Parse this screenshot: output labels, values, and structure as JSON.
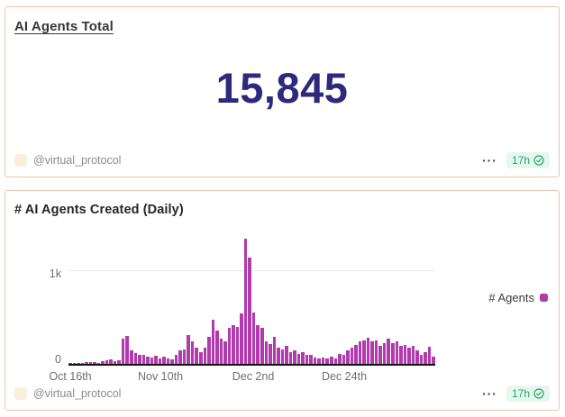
{
  "colors": {
    "card_border": "#e8c7b1",
    "counter_text": "#2d2a7e",
    "bar_magenta": "#b13aad",
    "badge_green_bg": "#e6f7ee",
    "badge_green_text": "#2aa169",
    "footer_gray": "#8b8b8b",
    "avatar_peach": "#fbeedc"
  },
  "icons": {
    "more_menu": "···"
  },
  "counter_card": {
    "title": "AI Agents Total",
    "value": "15,845",
    "footer": {
      "author": "@virtual_protocol",
      "refreshed": "17h"
    }
  },
  "chart_card": {
    "title": "# AI Agents Created (Daily)",
    "legend_label": "# Agents",
    "footer": {
      "author": "@virtual_protocol",
      "refreshed": "17h"
    }
  },
  "chart_data": {
    "type": "bar",
    "title": "# AI Agents Created (Daily)",
    "series_name": "# Agents",
    "bar_color": "#b13aad",
    "x_ticks": [
      "Oct 16th",
      "Nov 10th",
      "Dec 2nd",
      "Dec 24th"
    ],
    "y_ticks": [
      "1k",
      "0"
    ],
    "ylim": [
      0,
      1400
    ],
    "x_start_label": "Oct 16th",
    "x_frequency": "daily",
    "values": [
      8,
      10,
      6,
      12,
      15,
      22,
      18,
      14,
      28,
      35,
      45,
      30,
      38,
      270,
      300,
      145,
      115,
      95,
      100,
      80,
      70,
      85,
      60,
      75,
      60,
      50,
      100,
      145,
      160,
      310,
      240,
      175,
      130,
      175,
      290,
      480,
      355,
      275,
      240,
      390,
      420,
      400,
      545,
      1350,
      1150,
      550,
      420,
      390,
      240,
      210,
      290,
      175,
      160,
      190,
      130,
      145,
      110,
      125,
      95,
      95,
      70,
      55,
      70,
      57,
      79,
      63,
      111,
      95,
      143,
      175,
      206,
      238,
      254,
      285,
      238,
      254,
      190,
      222,
      270,
      222,
      238,
      190,
      206,
      175,
      190,
      143,
      95,
      127,
      185,
      80
    ]
  }
}
